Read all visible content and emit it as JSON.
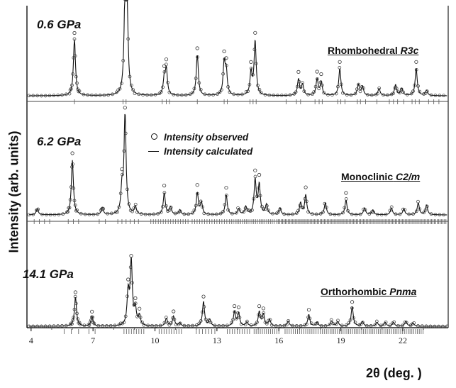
{
  "chart_data": {
    "type": "line",
    "title": "",
    "xlabel": "2θ (deg. )",
    "ylabel": "Intensity (arb. units)",
    "xlim": [
      3.8,
      24.2
    ],
    "xticks": [
      4,
      7,
      10,
      13,
      16,
      19,
      22
    ],
    "legend": {
      "placement": "center",
      "observed": "Intensity observed",
      "calculated": "Intensity calculated"
    },
    "panels": [
      {
        "pressure": "0.6 GPa",
        "phase_name": "Rhombohedral",
        "phase_group": "R3c",
        "peaks": [
          {
            "x": 6.1,
            "h": 0.62
          },
          {
            "x": 8.55,
            "h": 1.0
          },
          {
            "x": 8.65,
            "h": 0.85
          },
          {
            "x": 10.55,
            "h": 0.28
          },
          {
            "x": 10.45,
            "h": 0.18
          },
          {
            "x": 12.05,
            "h": 0.45
          },
          {
            "x": 13.35,
            "h": 0.35
          },
          {
            "x": 13.45,
            "h": 0.25
          },
          {
            "x": 14.65,
            "h": 0.25
          },
          {
            "x": 14.85,
            "h": 0.6
          },
          {
            "x": 16.95,
            "h": 0.18
          },
          {
            "x": 17.15,
            "h": 0.12
          },
          {
            "x": 17.85,
            "h": 0.18
          },
          {
            "x": 18.05,
            "h": 0.15
          },
          {
            "x": 18.95,
            "h": 0.3
          },
          {
            "x": 19.85,
            "h": 0.12
          },
          {
            "x": 20.05,
            "h": 0.1
          },
          {
            "x": 20.85,
            "h": 0.08
          },
          {
            "x": 21.65,
            "h": 0.12
          },
          {
            "x": 21.95,
            "h": 0.08
          },
          {
            "x": 22.65,
            "h": 0.3
          },
          {
            "x": 23.15,
            "h": 0.06
          }
        ],
        "ticks": [
          6.1,
          8.45,
          8.6,
          10.35,
          10.55,
          10.7,
          12.05,
          13.35,
          13.5,
          14.6,
          14.75,
          14.9,
          16.35,
          16.85,
          17.05,
          17.75,
          17.95,
          18.1,
          18.85,
          19.0,
          19.2,
          19.8,
          19.95,
          20.2,
          20.75,
          21.35,
          21.55,
          21.75,
          22.05,
          22.45,
          22.6,
          22.8,
          23.25,
          23.5,
          23.75
        ]
      },
      {
        "pressure": "6.2 GPa",
        "phase_name": "Monoclinic",
        "phase_group": "C2/m",
        "peaks": [
          {
            "x": 4.3,
            "h": 0.06
          },
          {
            "x": 6.0,
            "h": 0.55
          },
          {
            "x": 7.45,
            "h": 0.07
          },
          {
            "x": 8.4,
            "h": 0.25
          },
          {
            "x": 8.55,
            "h": 1.0
          },
          {
            "x": 9.05,
            "h": 0.08
          },
          {
            "x": 10.45,
            "h": 0.22
          },
          {
            "x": 10.75,
            "h": 0.08
          },
          {
            "x": 11.2,
            "h": 0.05
          },
          {
            "x": 12.05,
            "h": 0.22
          },
          {
            "x": 12.25,
            "h": 0.12
          },
          {
            "x": 13.45,
            "h": 0.2
          },
          {
            "x": 14.05,
            "h": 0.06
          },
          {
            "x": 14.4,
            "h": 0.08
          },
          {
            "x": 14.85,
            "h": 0.35
          },
          {
            "x": 15.05,
            "h": 0.3
          },
          {
            "x": 15.4,
            "h": 0.1
          },
          {
            "x": 16.05,
            "h": 0.07
          },
          {
            "x": 17.05,
            "h": 0.12
          },
          {
            "x": 17.3,
            "h": 0.2
          },
          {
            "x": 18.25,
            "h": 0.12
          },
          {
            "x": 19.25,
            "h": 0.15
          },
          {
            "x": 20.15,
            "h": 0.07
          },
          {
            "x": 20.55,
            "h": 0.05
          },
          {
            "x": 21.45,
            "h": 0.07
          },
          {
            "x": 22.05,
            "h": 0.06
          },
          {
            "x": 22.75,
            "h": 0.12
          },
          {
            "x": 23.15,
            "h": 0.1
          }
        ],
        "tick_ranges": [
          [
            4.15,
            4.9,
            0.25
          ],
          [
            5.8,
            6.3,
            0.25
          ],
          [
            7.3,
            7.6,
            0.3
          ],
          [
            8.2,
            9.2,
            0.2
          ],
          [
            9.8,
            11.6,
            0.12
          ],
          [
            11.8,
            13.6,
            0.12
          ],
          [
            13.7,
            15.8,
            0.09
          ],
          [
            15.9,
            24.1,
            0.07
          ]
        ]
      },
      {
        "pressure": "14.1 GPa",
        "phase_name": "Orthorhombic",
        "phase_group": "Pnma",
        "peaks": [
          {
            "x": 6.15,
            "h": 0.45
          },
          {
            "x": 6.95,
            "h": 0.15
          },
          {
            "x": 8.7,
            "h": 0.5
          },
          {
            "x": 8.85,
            "h": 1.0
          },
          {
            "x": 9.05,
            "h": 0.25
          },
          {
            "x": 9.25,
            "h": 0.15
          },
          {
            "x": 10.55,
            "h": 0.12
          },
          {
            "x": 10.9,
            "h": 0.15
          },
          {
            "x": 11.2,
            "h": 0.05
          },
          {
            "x": 12.35,
            "h": 0.38
          },
          {
            "x": 12.65,
            "h": 0.1
          },
          {
            "x": 13.85,
            "h": 0.22
          },
          {
            "x": 14.05,
            "h": 0.2
          },
          {
            "x": 14.45,
            "h": 0.06
          },
          {
            "x": 15.05,
            "h": 0.22
          },
          {
            "x": 15.25,
            "h": 0.18
          },
          {
            "x": 15.55,
            "h": 0.1
          },
          {
            "x": 16.45,
            "h": 0.08
          },
          {
            "x": 17.45,
            "h": 0.18
          },
          {
            "x": 17.85,
            "h": 0.06
          },
          {
            "x": 18.55,
            "h": 0.08
          },
          {
            "x": 18.85,
            "h": 0.07
          },
          {
            "x": 19.55,
            "h": 0.3
          },
          {
            "x": 20.05,
            "h": 0.07
          },
          {
            "x": 20.75,
            "h": 0.06
          },
          {
            "x": 21.15,
            "h": 0.06
          },
          {
            "x": 21.55,
            "h": 0.06
          },
          {
            "x": 22.15,
            "h": 0.08
          },
          {
            "x": 22.5,
            "h": 0.05
          }
        ],
        "tick_ranges": [
          [
            5.6,
            6.3,
            0.35
          ],
          [
            6.8,
            7.3,
            0.3
          ],
          [
            8.5,
            9.5,
            0.12
          ],
          [
            10.2,
            11.3,
            0.12
          ],
          [
            12.0,
            12.9,
            0.15
          ],
          [
            13.5,
            14.6,
            0.12
          ],
          [
            14.8,
            16.0,
            0.1
          ],
          [
            16.3,
            18.2,
            0.1
          ],
          [
            18.3,
            23.0,
            0.09
          ]
        ]
      }
    ]
  }
}
